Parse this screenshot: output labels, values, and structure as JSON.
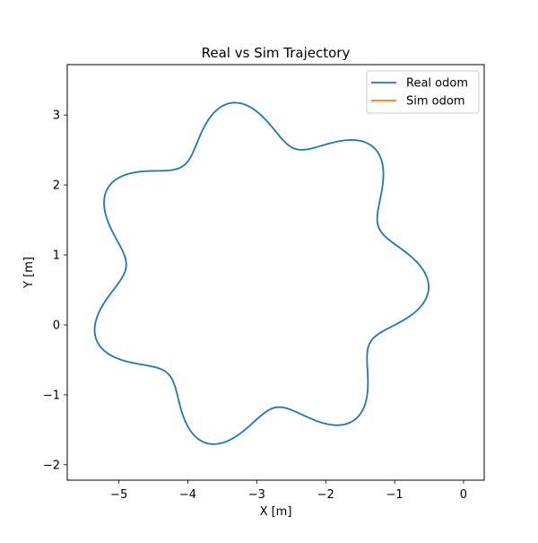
{
  "chart_data": {
    "type": "line",
    "title": "Real vs Sim Trajectory",
    "xlabel": "X [m]",
    "ylabel": "Y [m]",
    "xlim": [
      -5.75,
      0.3
    ],
    "ylim": [
      -2.22,
      3.72
    ],
    "xticks": [
      -5,
      -4,
      -3,
      -2,
      -1,
      0
    ],
    "xtick_labels": [
      "−5",
      "−4",
      "−3",
      "−2",
      "−1",
      "0"
    ],
    "yticks": [
      -2,
      -1,
      0,
      1,
      2,
      3
    ],
    "ytick_labels": [
      "−2",
      "−1",
      "0",
      "1",
      "2",
      "3"
    ],
    "grid": false,
    "legend_position": "upper right",
    "series": [
      {
        "name": "Real odom",
        "color": "#1f77b4",
        "trajectory": {
          "center": [
            -3.0,
            0.7
          ],
          "r0": 2.2,
          "amp": 0.3,
          "lobes": 7,
          "sweep_revolutions": 4,
          "start_angle_deg": 238,
          "phase_deg": 30
        }
      },
      {
        "name": "Sim odom",
        "color": "#ff7f0e",
        "x": [],
        "y": []
      }
    ]
  }
}
